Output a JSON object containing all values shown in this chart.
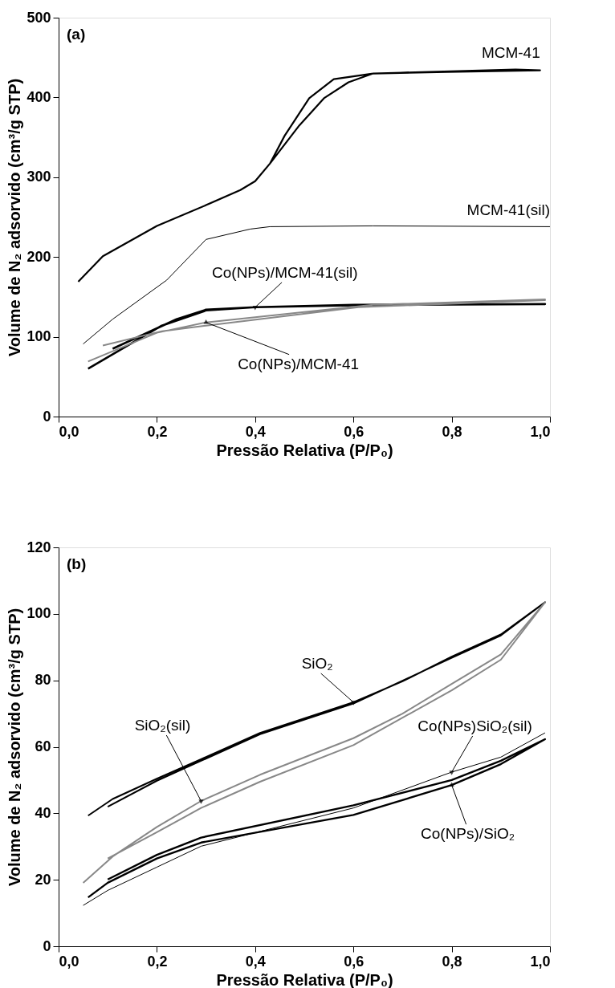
{
  "chart_data": [
    {
      "type": "line",
      "xlabel": "Pressão Relativa (P/P₀)",
      "ylabel": "Volume de N₂ adsorvido (cm³/g STP)",
      "annotations": [
        "(a)"
      ],
      "xlim": [
        0,
        1
      ],
      "ylim": [
        0,
        500
      ],
      "xticks": [
        {
          "value": 0,
          "label": "0,0"
        },
        {
          "value": 0.2,
          "label": "0,2"
        },
        {
          "value": 0.4,
          "label": "0,4"
        },
        {
          "value": 0.6,
          "label": "0,6"
        },
        {
          "value": 0.8,
          "label": "0,8"
        },
        {
          "value": 1,
          "label": "1,0"
        }
      ],
      "yticks": [
        0,
        100,
        200,
        300,
        400,
        500
      ],
      "grid": false,
      "marker": "none",
      "line_style": "solid",
      "series": [
        {
          "name": "MCM-41",
          "color": "#000000",
          "x": [
            0.04,
            0.09,
            0.2,
            0.3,
            0.37,
            0.4,
            0.43,
            0.49,
            0.54,
            0.59,
            0.64,
            0.79,
            0.98,
            0.93,
            0.64,
            0.56,
            0.51,
            0.46,
            0.43,
            0.4
          ],
          "values": [
            169,
            201,
            239,
            265,
            284,
            295,
            317,
            365,
            399,
            419,
            430,
            432,
            434,
            435,
            430,
            423,
            399,
            352,
            317,
            295
          ]
        },
        {
          "name": "MCM-41(sil)",
          "color": "#000000",
          "x": [
            0.05,
            0.11,
            0.22,
            0.3,
            0.39,
            0.43,
            0.64,
            1.0
          ],
          "values": [
            91,
            122,
            171,
            222,
            235,
            238,
            239,
            238
          ]
        },
        {
          "name": "Co(NPs)/MCM-41(sil)",
          "color": "#000000",
          "x": [
            0.06,
            0.21,
            0.3,
            0.4,
            0.6,
            0.99,
            0.99,
            0.64,
            0.4,
            0.3,
            0.24,
            0.11
          ],
          "values": [
            60,
            114,
            133,
            137,
            140,
            141,
            141,
            140,
            137,
            134,
            122,
            85
          ]
        },
        {
          "name": "Co(NPs)/MCM-41",
          "color": "#888888",
          "x": [
            0.06,
            0.2,
            0.3,
            0.5,
            0.64,
            0.99,
            0.99,
            0.61,
            0.3,
            0.21,
            0.09
          ],
          "values": [
            69,
            105,
            118,
            131,
            140,
            147,
            146,
            137,
            114,
            107,
            89
          ]
        }
      ]
    },
    {
      "type": "line",
      "xlabel": "Pressão Relativa (P/P₀)",
      "ylabel": "Volume de N₂ adsorvido (cm³/g STP)",
      "annotations": [
        "(b)"
      ],
      "xlim": [
        0,
        1
      ],
      "ylim": [
        0,
        120
      ],
      "xticks": [
        {
          "value": 0,
          "label": "0,0"
        },
        {
          "value": 0.2,
          "label": "0,2"
        },
        {
          "value": 0.4,
          "label": "0,4"
        },
        {
          "value": 0.6,
          "label": "0,6"
        },
        {
          "value": 0.8,
          "label": "0,8"
        },
        {
          "value": 1,
          "label": "1,0"
        }
      ],
      "yticks": [
        0,
        20,
        40,
        60,
        80,
        100,
        120
      ],
      "grid": false,
      "marker": "none",
      "line_style": "solid",
      "series": [
        {
          "name": "SiO₂",
          "color": "#000000",
          "x": [
            0.06,
            0.11,
            0.2,
            0.29,
            0.41,
            0.6,
            0.7,
            0.8,
            0.9,
            0.99,
            0.9,
            0.8,
            0.6,
            0.41,
            0.29,
            0.2,
            0.1
          ],
          "values": [
            39.3,
            44.3,
            50.4,
            56.3,
            64.2,
            73.4,
            79.7,
            87.1,
            93.8,
            103.5,
            93.5,
            86.8,
            73.0,
            63.8,
            55.8,
            49.8,
            42.0
          ]
        },
        {
          "name": "SiO₂(sil)",
          "color": "#888888",
          "x": [
            0.05,
            0.11,
            0.2,
            0.29,
            0.41,
            0.6,
            0.7,
            0.8,
            0.9,
            0.99,
            0.9,
            0.8,
            0.6,
            0.41,
            0.29,
            0.2,
            0.1
          ],
          "values": [
            19.1,
            27.0,
            35.9,
            43.7,
            51.6,
            62.6,
            70.0,
            78.9,
            87.8,
            103.5,
            86.2,
            77.0,
            60.5,
            49.5,
            41.6,
            34.3,
            26.4
          ]
        },
        {
          "name": "Co(NPs)SiO₂(sil)",
          "color": "#000000",
          "x": [
            0.05,
            0.1,
            0.2,
            0.29,
            0.6,
            0.8,
            0.9,
            0.99
          ],
          "values": [
            12.3,
            16.8,
            23.8,
            30.1,
            41.6,
            52.4,
            56.9,
            64.2
          ]
        },
        {
          "name": "Co(NPs)/SiO₂",
          "color": "#000000",
          "x": [
            0.06,
            0.1,
            0.2,
            0.29,
            0.6,
            0.8,
            0.9,
            0.99,
            0.9,
            0.8,
            0.6,
            0.29,
            0.2,
            0.1
          ],
          "values": [
            14.7,
            19.1,
            26.4,
            31.2,
            39.5,
            48.5,
            54.8,
            62.3,
            55.8,
            50.0,
            42.4,
            32.7,
            27.5,
            20.1
          ]
        }
      ]
    }
  ]
}
